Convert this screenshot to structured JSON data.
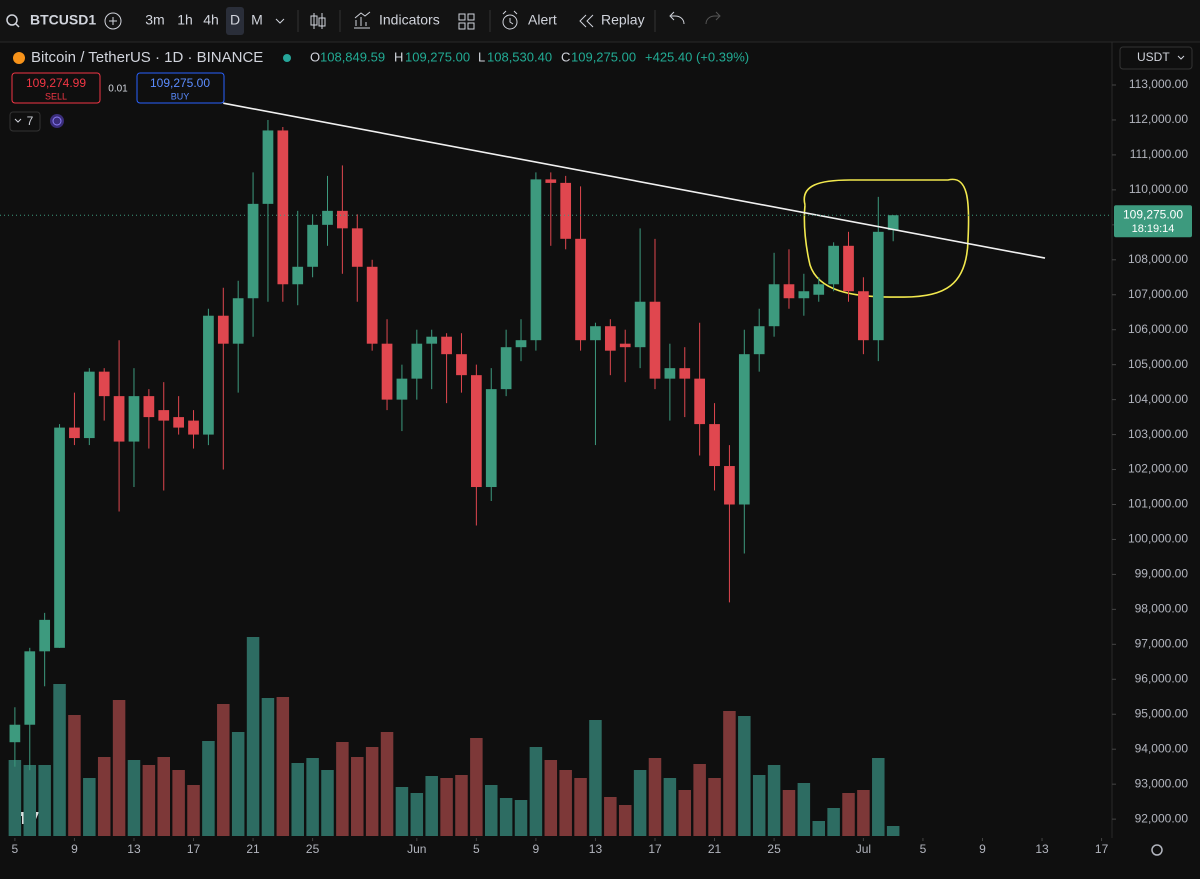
{
  "toolbar": {
    "symbol": "BTCUSD1",
    "intervals": [
      "3m",
      "1h",
      "4h",
      "D",
      "M"
    ],
    "buttons": [
      "Indicators",
      "Alert",
      "Replay"
    ]
  },
  "legend": {
    "title": "Bitcoin / TetherUS · 1D · BINANCE",
    "open_key": "O",
    "open": "108,849.59",
    "high_key": "H",
    "high": "109,275.00",
    "low_key": "L",
    "low": "108,530.40",
    "close_key": "C",
    "close": "109,275.00",
    "change": "+425.40 (+0.39%)"
  },
  "trade": {
    "sell_price": "109,274.99",
    "sell": "SELL",
    "quantity": "0.01",
    "buy_price": "109,275.00",
    "buy": "BUY"
  },
  "indicator_count": 7,
  "currency": "USDT",
  "chart_data": {
    "type": "candlestick",
    "x": [
      0,
      1,
      2,
      3,
      4,
      5,
      6,
      7,
      8,
      9,
      10,
      11,
      12,
      13,
      14,
      15,
      16,
      17,
      18,
      19,
      20,
      21,
      22,
      23,
      24,
      25,
      26,
      27,
      28,
      29,
      30,
      31,
      32,
      33,
      34,
      35,
      36,
      37,
      38,
      39,
      40,
      41,
      42,
      43,
      44,
      45,
      46,
      47,
      48,
      49,
      50,
      51,
      52,
      53,
      54,
      55,
      56,
      57,
      58,
      59
    ],
    "open": [
      94200,
      94700,
      96800,
      96900,
      103200,
      102900,
      104800,
      104100,
      102800,
      104100,
      103700,
      103500,
      103400,
      103000,
      106400,
      105600,
      106900,
      109600,
      111700,
      107300,
      107800,
      109000,
      109400,
      108900,
      107800,
      105600,
      104000,
      104600,
      105600,
      105800,
      105300,
      104700,
      101500,
      104300,
      105500,
      105700,
      110300,
      110200,
      108600,
      105700,
      106100,
      105600,
      105500,
      106800,
      104600,
      104900,
      104600,
      103300,
      102100,
      101000,
      105300,
      106100,
      107300,
      106900,
      107000,
      107300,
      108400,
      107100,
      105700,
      108849.59
    ],
    "high": [
      95200,
      96900,
      97900,
      103300,
      104200,
      104900,
      104900,
      105700,
      104900,
      104300,
      104500,
      104100,
      103700,
      106600,
      107200,
      107400,
      110500,
      112000,
      111800,
      109400,
      109300,
      110400,
      110700,
      109300,
      108000,
      106300,
      105000,
      106000,
      106000,
      105900,
      105900,
      105000,
      104900,
      106000,
      106300,
      110500,
      110500,
      110400,
      110100,
      106200,
      106300,
      106000,
      108900,
      108600,
      105600,
      105500,
      106200,
      103900,
      102700,
      106000,
      106600,
      108200,
      108300,
      107600,
      107500,
      108500,
      108800,
      107500,
      109800,
      109275
    ],
    "low": [
      93500,
      93400,
      95800,
      96900,
      102700,
      102700,
      103400,
      100800,
      101500,
      102600,
      101400,
      103000,
      102600,
      102700,
      102000,
      104200,
      105800,
      106800,
      106800,
      106700,
      107500,
      108400,
      107600,
      106800,
      105400,
      103700,
      103100,
      104000,
      104300,
      103900,
      104200,
      100400,
      101100,
      104100,
      105100,
      105400,
      108400,
      108300,
      105400,
      102700,
      104700,
      104500,
      104900,
      104300,
      103400,
      103500,
      102400,
      101400,
      98200,
      99600,
      104800,
      105800,
      106600,
      106400,
      106800,
      107100,
      106800,
      105300,
      105100,
      108530.4
    ],
    "close": [
      94700,
      96800,
      97700,
      103200,
      102900,
      104800,
      104100,
      102800,
      104100,
      103500,
      103400,
      103200,
      103000,
      106400,
      105600,
      106900,
      109600,
      111700,
      107300,
      107800,
      109000,
      109400,
      108900,
      107800,
      105600,
      104000,
      104600,
      105600,
      105800,
      105300,
      104700,
      101500,
      104300,
      105500,
      105700,
      110300,
      110200,
      108600,
      105700,
      106100,
      105400,
      105500,
      106800,
      104600,
      104900,
      104600,
      103300,
      102100,
      101000,
      105300,
      106100,
      107300,
      106900,
      107100,
      107300,
      108400,
      107100,
      105700,
      108800,
      109275
    ],
    "volume": [
      76,
      71,
      71,
      152,
      121,
      58,
      79,
      136,
      76,
      71,
      79,
      66,
      51,
      95,
      132,
      104,
      199,
      138,
      139,
      73,
      78,
      66,
      94,
      79,
      89,
      104,
      49,
      43,
      60,
      58,
      61,
      98,
      51,
      38,
      36,
      89,
      76,
      66,
      58,
      116,
      39,
      31,
      66,
      78,
      58,
      46,
      72,
      58,
      125,
      120,
      61,
      71,
      46,
      53,
      15,
      28,
      43,
      46,
      78,
      10
    ],
    "vlim": [
      0,
      200
    ],
    "xlim": [
      -1,
      73.7
    ],
    "xticks": [
      {
        "value": 0,
        "label": "5"
      },
      {
        "value": 4,
        "label": "9"
      },
      {
        "value": 8,
        "label": "13"
      },
      {
        "value": 12,
        "label": "17"
      },
      {
        "value": 16,
        "label": "21"
      },
      {
        "value": 20,
        "label": "25"
      },
      {
        "value": 27,
        "label": "Jun"
      },
      {
        "value": 31,
        "label": "5"
      },
      {
        "value": 35,
        "label": "9"
      },
      {
        "value": 39,
        "label": "13"
      },
      {
        "value": 43,
        "label": "17"
      },
      {
        "value": 47,
        "label": "21"
      },
      {
        "value": 51,
        "label": "25"
      },
      {
        "value": 57,
        "label": "Jul"
      },
      {
        "value": 61,
        "label": "5"
      },
      {
        "value": 65,
        "label": "9"
      },
      {
        "value": 69,
        "label": "13"
      },
      {
        "value": 73,
        "label": "17"
      }
    ],
    "ylim": [
      91460,
      114230
    ],
    "yticks": [
      {
        "value": 92000,
        "label": "92,000.00"
      },
      {
        "value": 93000,
        "label": "93,000.00"
      },
      {
        "value": 94000,
        "label": "94,000.00"
      },
      {
        "value": 95000,
        "label": "95,000.00"
      },
      {
        "value": 96000,
        "label": "96,000.00"
      },
      {
        "value": 97000,
        "label": "97,000.00"
      },
      {
        "value": 98000,
        "label": "98,000.00"
      },
      {
        "value": 99000,
        "label": "99,000.00"
      },
      {
        "value": 100000,
        "label": "100,000.00"
      },
      {
        "value": 101000,
        "label": "101,000.00"
      },
      {
        "value": 102000,
        "label": "102,000.00"
      },
      {
        "value": 103000,
        "label": "103,000.00"
      },
      {
        "value": 104000,
        "label": "104,000.00"
      },
      {
        "value": 105000,
        "label": "105,000.00"
      },
      {
        "value": 106000,
        "label": "106,000.00"
      },
      {
        "value": 107000,
        "label": "107,000.00"
      },
      {
        "value": 108000,
        "label": "108,000.00"
      },
      {
        "value": 109000,
        "label": "109,000.00"
      },
      {
        "value": 110000,
        "label": "110,000.00"
      },
      {
        "value": 111000,
        "label": "111,000.00"
      },
      {
        "value": 112000,
        "label": "112,000.00"
      },
      {
        "value": 113000,
        "label": "113,000.00"
      }
    ],
    "last_price": {
      "value": 109275,
      "label": "109,275.00"
    },
    "countdown": "18:19:14",
    "trendline": {
      "x": [
        14,
        69.2
      ],
      "y": [
        112480,
        108050
      ]
    },
    "up_color": "#3d9a7e",
    "down_color": "#e0474f",
    "volume_up_color": "#2d6c62",
    "volume_down_color": "#7d3838",
    "grid": false
  }
}
